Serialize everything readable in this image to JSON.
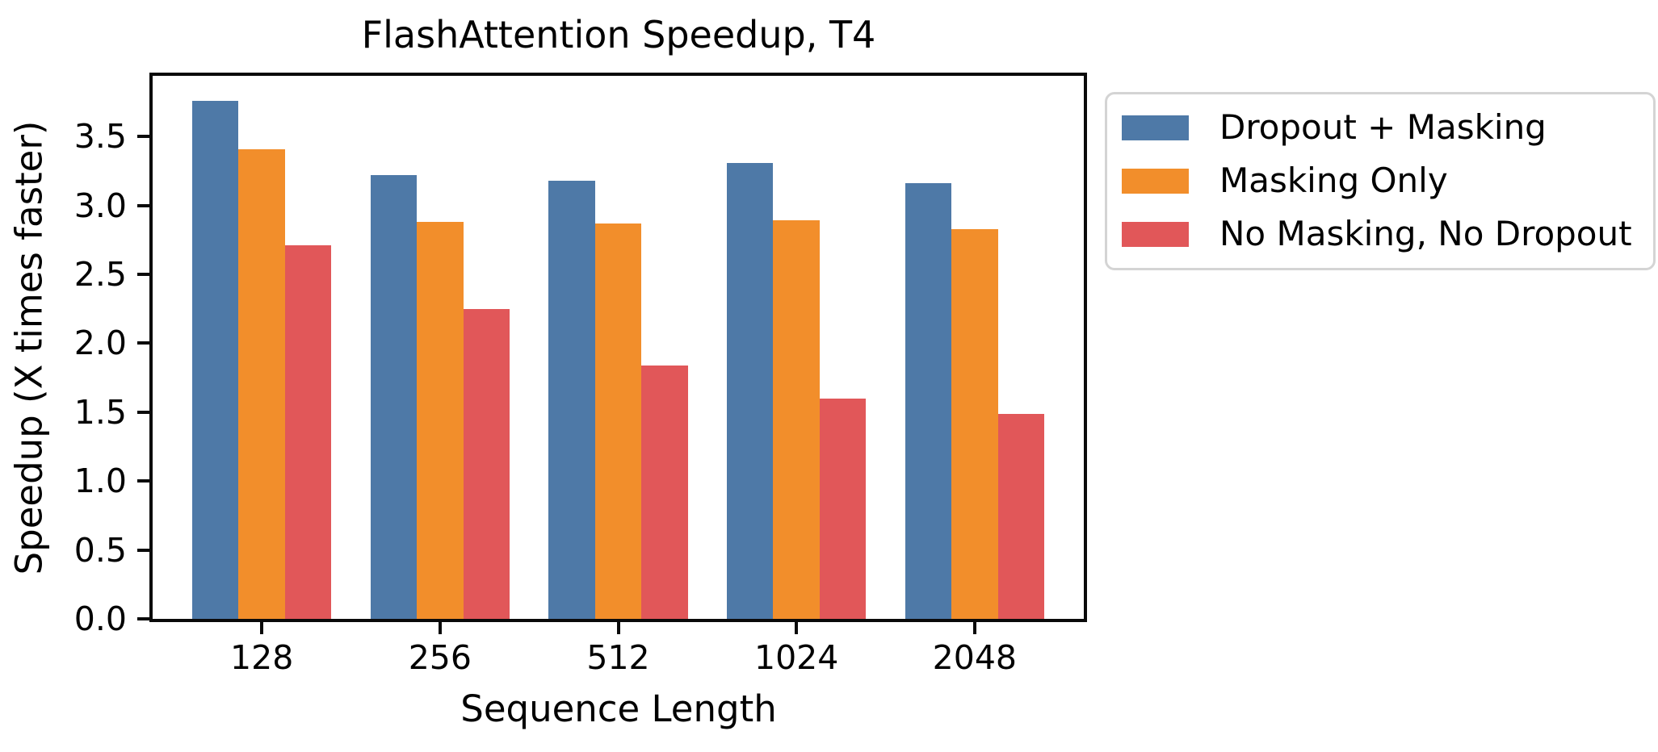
{
  "chart_data": {
    "type": "bar",
    "title": "FlashAttention Speedup, T4",
    "xlabel": "Sequence Length",
    "ylabel": "Speedup (X times faster)",
    "categories": [
      "128",
      "256",
      "512",
      "1024",
      "2048"
    ],
    "series": [
      {
        "name": "Dropout + Masking",
        "color": "#4e79a7",
        "values": [
          3.76,
          3.22,
          3.18,
          3.31,
          3.16
        ]
      },
      {
        "name": "Masking Only",
        "color": "#f28e2b",
        "values": [
          3.41,
          2.88,
          2.87,
          2.89,
          2.83
        ]
      },
      {
        "name": "No Masking, No Dropout",
        "color": "#e15759",
        "values": [
          2.71,
          2.25,
          1.84,
          1.6,
          1.49
        ]
      }
    ],
    "yticks": [
      0.0,
      0.5,
      1.0,
      1.5,
      2.0,
      2.5,
      3.0,
      3.5
    ],
    "ytick_labels": [
      "0.0",
      "0.5",
      "1.0",
      "1.5",
      "2.0",
      "2.5",
      "3.0",
      "3.5"
    ],
    "ylim": [
      0,
      3.94
    ],
    "xlim": [
      -0.6125,
      4.6125
    ],
    "bar_width_units": 0.26,
    "grid": false,
    "legend_position": "outside-upper-right",
    "axis_color": "#0a0a0a",
    "background": "#ffffff"
  }
}
